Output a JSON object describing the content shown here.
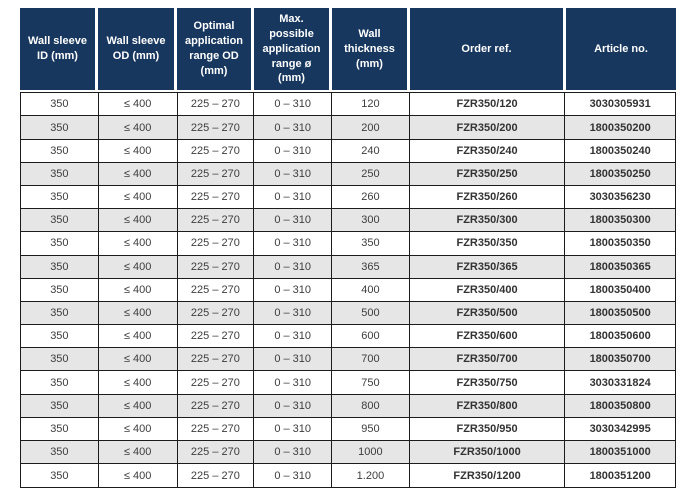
{
  "colors": {
    "header_bg": "#17375e",
    "header_text": "#ffffff",
    "row_alt_bg": "#e6e6e6",
    "border": "#1c1c1c",
    "body_text": "#3d3d3d"
  },
  "table": {
    "headers": [
      "Wall sleeve ID (mm)",
      "Wall sleeve OD (mm)",
      "Optimal application range OD (mm)",
      "Max. possible application range ø (mm)",
      "Wall thickness (mm)",
      "Order ref.",
      "Article no."
    ],
    "rows": [
      [
        "350",
        "≤ 400",
        "225 – 270",
        "0 – 310",
        "120",
        "FZR350/120",
        "3030305931"
      ],
      [
        "350",
        "≤ 400",
        "225 – 270",
        "0 – 310",
        "200",
        "FZR350/200",
        "1800350200"
      ],
      [
        "350",
        "≤ 400",
        "225 – 270",
        "0 – 310",
        "240",
        "FZR350/240",
        "1800350240"
      ],
      [
        "350",
        "≤ 400",
        "225 – 270",
        "0 – 310",
        "250",
        "FZR350/250",
        "1800350250"
      ],
      [
        "350",
        "≤ 400",
        "225 – 270",
        "0 – 310",
        "260",
        "FZR350/260",
        "3030356230"
      ],
      [
        "350",
        "≤ 400",
        "225 – 270",
        "0 – 310",
        "300",
        "FZR350/300",
        "1800350300"
      ],
      [
        "350",
        "≤ 400",
        "225 – 270",
        "0 – 310",
        "350",
        "FZR350/350",
        "1800350350"
      ],
      [
        "350",
        "≤ 400",
        "225 – 270",
        "0 – 310",
        "365",
        "FZR350/365",
        "1800350365"
      ],
      [
        "350",
        "≤ 400",
        "225 – 270",
        "0 – 310",
        "400",
        "FZR350/400",
        "1800350400"
      ],
      [
        "350",
        "≤ 400",
        "225 – 270",
        "0 – 310",
        "500",
        "FZR350/500",
        "1800350500"
      ],
      [
        "350",
        "≤ 400",
        "225 – 270",
        "0 – 310",
        "600",
        "FZR350/600",
        "1800350600"
      ],
      [
        "350",
        "≤ 400",
        "225 – 270",
        "0 – 310",
        "700",
        "FZR350/700",
        "1800350700"
      ],
      [
        "350",
        "≤ 400",
        "225 – 270",
        "0 – 310",
        "750",
        "FZR350/750",
        "3030331824"
      ],
      [
        "350",
        "≤ 400",
        "225 – 270",
        "0 – 310",
        "800",
        "FZR350/800",
        "1800350800"
      ],
      [
        "350",
        "≤ 400",
        "225 – 270",
        "0 – 310",
        "950",
        "FZR350/950",
        "3030342995"
      ],
      [
        "350",
        "≤ 400",
        "225 – 270",
        "0 – 310",
        "1000",
        "FZR350/1000",
        "1800351000"
      ],
      [
        "350",
        "≤ 400",
        "225 – 270",
        "0 – 310",
        "1.200",
        "FZR350/1200",
        "1800351200"
      ]
    ],
    "bold_columns": [
      5,
      6
    ]
  }
}
